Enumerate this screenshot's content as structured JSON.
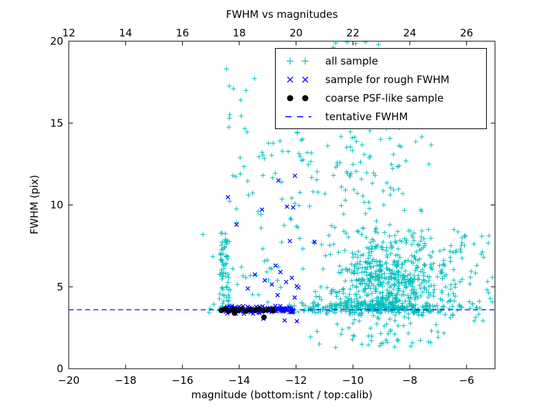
{
  "figure": {
    "background": "#ffffff",
    "axes_edge_color": "#000000"
  },
  "chart_data": {
    "type": "scatter",
    "title": "FWHM vs magnitudes",
    "xlabel": "magnitude (bottom:isnt / top:calib)",
    "ylabel": "FWHM (pix)",
    "grid": false,
    "seed": 42,
    "axes": {
      "x_bottom": {
        "min": -20,
        "max": -5,
        "tick_values": [
          -20,
          -18,
          -16,
          -14,
          -12,
          -10,
          -8,
          -6
        ],
        "tick_labels": [
          "−20",
          "−18",
          "−16",
          "−14",
          "−12",
          "−10",
          "−8",
          "−6"
        ]
      },
      "x_top": {
        "min": 12,
        "max": 27,
        "tick_values": [
          12,
          14,
          16,
          18,
          20,
          22,
          24,
          26
        ],
        "tick_labels": [
          "12",
          "14",
          "16",
          "18",
          "20",
          "22",
          "24",
          "26"
        ]
      },
      "y_left": {
        "min": 0,
        "max": 20,
        "tick_values": [
          0,
          5,
          10,
          15,
          20
        ],
        "tick_labels": [
          "0",
          "5",
          "10",
          "15",
          "20"
        ]
      }
    },
    "legend": {
      "location": "upper right inside"
    },
    "tentative_fwhm_value": 3.6,
    "series": [
      {
        "name": "all sample",
        "marker": "plus",
        "color": "#00bfbf",
        "points": [
          [
            -15.06,
            3.44
          ],
          [
            -15.28,
            8.2
          ],
          [
            -14.93,
            6.85
          ],
          [
            -14.45,
            18.3
          ],
          [
            -14.2,
            17.1
          ],
          [
            -13.95,
            16.4
          ],
          [
            -14.35,
            15.3
          ],
          [
            -10.6,
            19.9
          ],
          [
            -10.2,
            19.95
          ],
          [
            -9.9,
            19.85
          ],
          [
            -9.55,
            19.95
          ],
          [
            -9.1,
            19.8
          ]
        ],
        "clusters": [
          {
            "n": 70,
            "mag": [
              "u",
              -14.68,
              -14.35
            ],
            "fwhm": [
              "u",
              3.5,
              8.3
            ]
          },
          {
            "n": 22,
            "mag": [
              "u",
              -14.6,
              -13.0
            ],
            "fwhm": [
              "u",
              8.5,
              18.6
            ]
          },
          {
            "n": 25,
            "mag": [
              "u",
              -15.07,
              -12.5
            ],
            "fwhm": [
              "u",
              3.4,
              6.6
            ]
          },
          {
            "n": 50,
            "mag": [
              "u",
              -13.4,
              -10.5
            ],
            "fwhm": [
              "u",
              6.6,
              14.2
            ]
          },
          {
            "n": 40,
            "mag": [
              "g",
              -9.8,
              1.3,
              -12.6,
              -7.3
            ],
            "fwhm": [
              "u",
              14.2,
              19.9
            ]
          },
          {
            "n": 75,
            "mag": [
              "g",
              -9.2,
              1.0,
              -11.5,
              -6.3
            ],
            "fwhm": [
              "u",
              8.3,
              14.2
            ]
          },
          {
            "n": 560,
            "mag": [
              "g",
              -8.7,
              1.15,
              -12.2,
              -5.8
            ],
            "fwhm": [
              "g",
              5.2,
              1.5,
              3.4,
              8.6
            ]
          },
          {
            "n": 260,
            "mag": [
              "g",
              -9.3,
              1.6,
              -12.5,
              -5.1
            ],
            "fwhm": [
              "g",
              3.72,
              0.22,
              3.1,
              4.3
            ]
          },
          {
            "n": 60,
            "mag": [
              "g",
              -8.8,
              1.3,
              -12.9,
              -6.0
            ],
            "fwhm": [
              "u",
              1.2,
              3.3
            ]
          },
          {
            "n": 40,
            "mag": [
              "u",
              -6.6,
              -5.05
            ],
            "fwhm": [
              "u",
              2.9,
              8.3
            ]
          }
        ]
      },
      {
        "name": "sample for rough FWHM",
        "marker": "x",
        "color": "#0000ff",
        "points": [
          [
            -12.62,
            11.5
          ],
          [
            -12.04,
            11.78
          ],
          [
            -14.4,
            10.48
          ],
          [
            -13.2,
            9.72
          ],
          [
            -12.32,
            9.9
          ],
          [
            -12.1,
            9.85
          ],
          [
            -14.1,
            8.8
          ],
          [
            -11.35,
            7.75
          ],
          [
            -12.22,
            7.8
          ],
          [
            -12.72,
            6.3
          ],
          [
            -13.45,
            5.75
          ],
          [
            -13.1,
            5.4
          ],
          [
            -12.85,
            5.15
          ],
          [
            -12.55,
            5.9
          ],
          [
            -12.35,
            5.3
          ],
          [
            -13.7,
            4.9
          ],
          [
            -12.65,
            4.5
          ],
          [
            -12.15,
            5.55
          ],
          [
            -11.98,
            5.05
          ],
          [
            -12.05,
            4.35
          ],
          [
            -11.92,
            4.95
          ],
          [
            -13.15,
            3.05
          ],
          [
            -12.4,
            2.95
          ],
          [
            -11.97,
            2.9
          ]
        ],
        "clusters": [
          {
            "n": 115,
            "mag": [
              "u",
              -14.55,
              -12.1
            ],
            "fwhm": [
              "g",
              3.62,
              0.1,
              3.35,
              3.95
            ]
          }
        ]
      },
      {
        "name": "coarse PSF-like sample",
        "marker": "dot",
        "color": "#000000",
        "points": [
          [
            -14.63,
            3.56
          ],
          [
            -14.51,
            3.65
          ],
          [
            -14.36,
            3.52
          ],
          [
            -14.22,
            3.61
          ],
          [
            -14.07,
            3.56
          ],
          [
            -13.9,
            3.65
          ],
          [
            -13.76,
            3.52
          ],
          [
            -13.61,
            3.61
          ],
          [
            -13.44,
            3.56
          ],
          [
            -13.3,
            3.65
          ],
          [
            -13.15,
            3.56
          ],
          [
            -12.98,
            3.61
          ],
          [
            -12.81,
            3.56
          ],
          [
            -13.13,
            3.14
          ],
          [
            -14.17,
            3.4
          ]
        ],
        "clusters": []
      },
      {
        "name": "tentative FWHM",
        "marker": "dashed-line",
        "color": "#0000ff",
        "line_y": 3.6
      }
    ]
  }
}
